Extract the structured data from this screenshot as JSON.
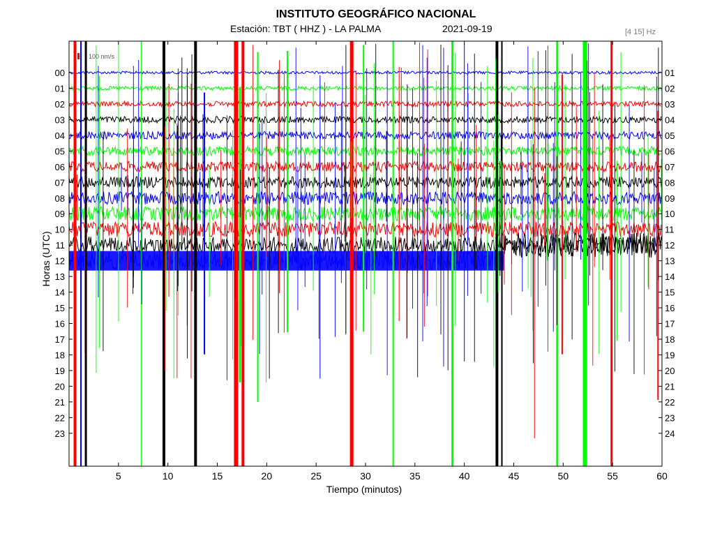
{
  "title": "INSTITUTO GEOGRÁFICO NACIONAL",
  "station_label": "Estación:  TBT ( HHZ ) - LA PALMA",
  "date": "2021-09-19",
  "frequency_band": "[4 15] Hz",
  "scale_label": "100 nm/s",
  "colors": {
    "blue": "#0000ff",
    "green": "#00ff00",
    "red": "#ff0000",
    "black": "#000000",
    "bg": "#ffffff"
  },
  "chart_data": {
    "type": "line",
    "title": "INSTITUTO GEOGRÁFICO NACIONAL",
    "xlabel": "Tiempo (minutos)",
    "ylabel": "Horas (UTC)",
    "xlim": [
      0,
      60
    ],
    "x_ticks": [
      5,
      10,
      15,
      20,
      25,
      30,
      35,
      40,
      45,
      50,
      55,
      60
    ],
    "left_ticks": [
      "00",
      "01",
      "02",
      "03",
      "04",
      "05",
      "06",
      "07",
      "08",
      "09",
      "10",
      "11",
      "12",
      "13",
      "14",
      "15",
      "16",
      "17",
      "18",
      "19",
      "20",
      "21",
      "22",
      "23"
    ],
    "right_ticks": [
      "01",
      "02",
      "03",
      "04",
      "05",
      "06",
      "07",
      "08",
      "09",
      "10",
      "11",
      "12",
      "13",
      "14",
      "15",
      "16",
      "17",
      "18",
      "19",
      "20",
      "21",
      "22",
      "23",
      "24"
    ],
    "trace_colors": [
      "blue",
      "green",
      "red",
      "black"
    ],
    "recorded_until": {
      "hour": 12,
      "minute": 44
    },
    "grid": false
  }
}
